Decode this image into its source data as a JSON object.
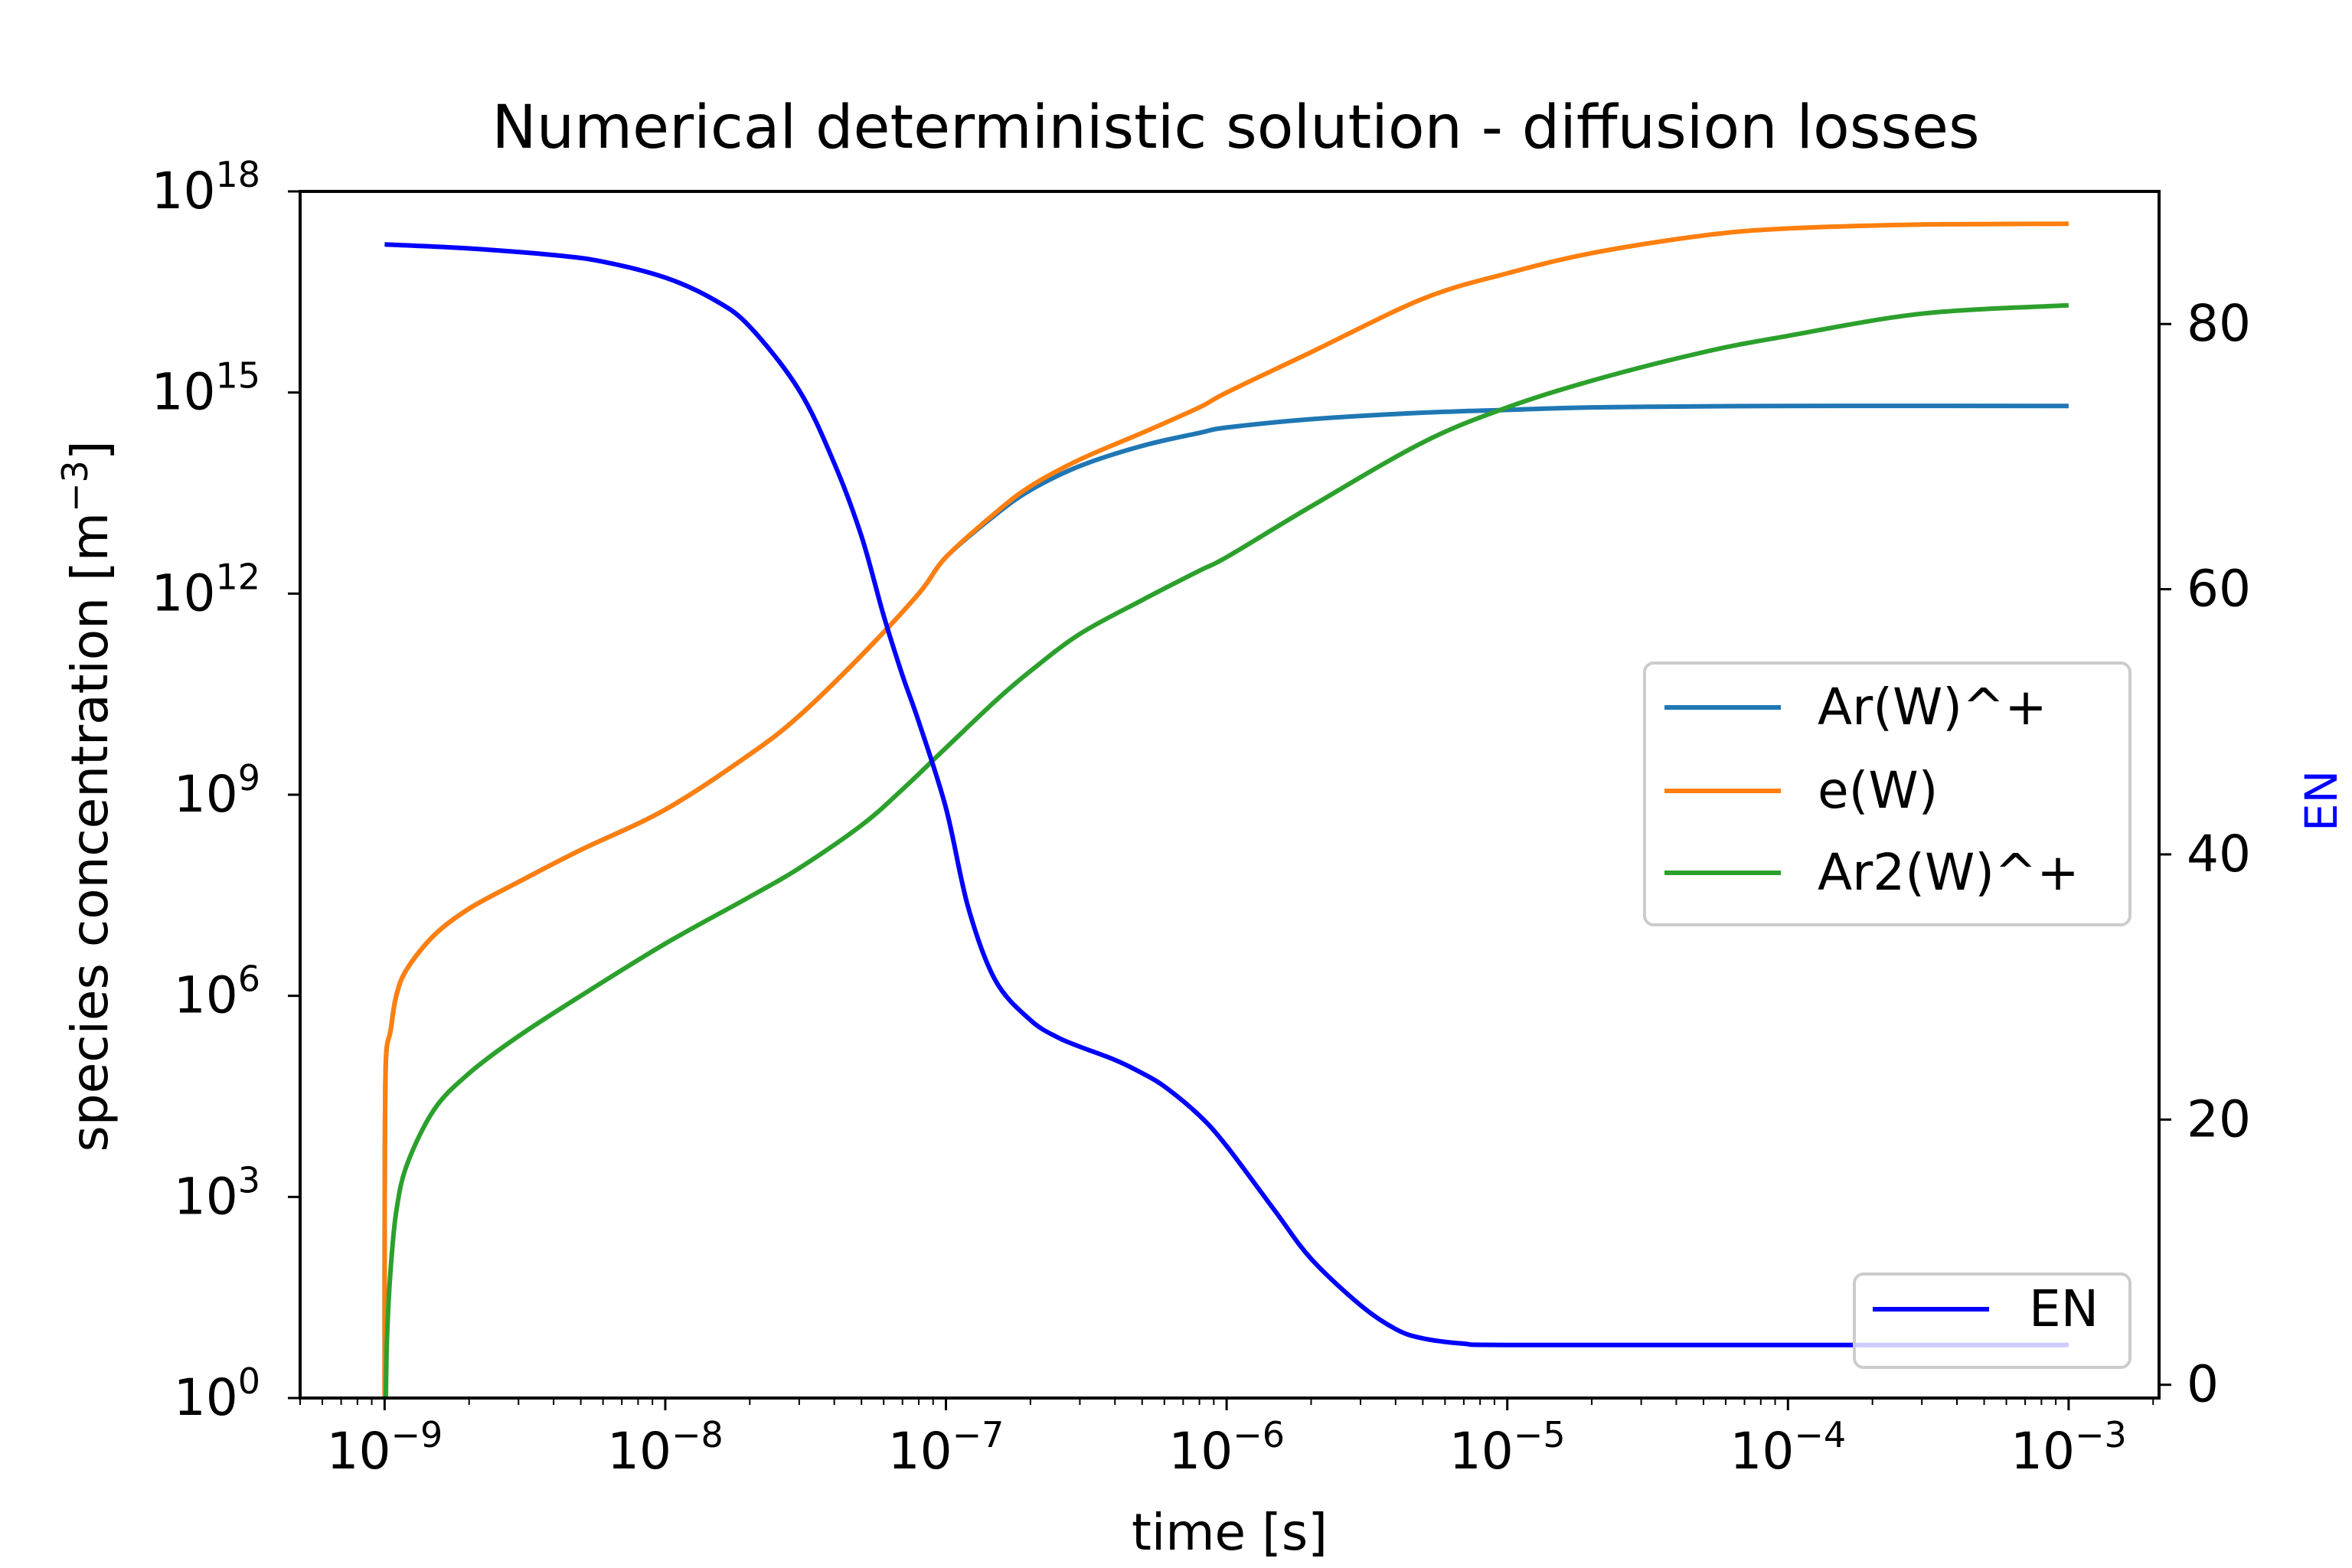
{
  "chart_data": {
    "type": "line",
    "title": "Numerical deterministic solution - diffusion losses",
    "xlabel": "time [s]",
    "ylabel": "species concentration [m",
    "ylabel_exp": "−3",
    "ylabel_tail": "]",
    "y2label": "EN",
    "xscale": "log",
    "yscale": "log",
    "xlim": [
      5e-10,
      0.0021
    ],
    "ylim": [
      1,
      1e+18
    ],
    "y2lim": [
      -1,
      90
    ],
    "x_ticks": [
      {
        "base": "10",
        "exp": "−9"
      },
      {
        "base": "10",
        "exp": "−8"
      },
      {
        "base": "10",
        "exp": "−7"
      },
      {
        "base": "10",
        "exp": "−6"
      },
      {
        "base": "10",
        "exp": "−5"
      },
      {
        "base": "10",
        "exp": "−4"
      },
      {
        "base": "10",
        "exp": "−3"
      }
    ],
    "y_ticks": [
      {
        "base": "10",
        "exp": "0"
      },
      {
        "base": "10",
        "exp": "3"
      },
      {
        "base": "10",
        "exp": "6"
      },
      {
        "base": "10",
        "exp": "9"
      },
      {
        "base": "10",
        "exp": "12"
      },
      {
        "base": "10",
        "exp": "15"
      },
      {
        "base": "10",
        "exp": "18"
      }
    ],
    "y2_ticks": [
      "0",
      "20",
      "40",
      "60",
      "80"
    ],
    "legend_main_position": "center-right",
    "legend_en_position": "lower-right",
    "grid": false,
    "series": [
      {
        "name": "Ar(W)^+",
        "axis": "left",
        "color": "#1f77b4",
        "x": [
          1e-09,
          1.001e-09,
          1.01e-09,
          1.05e-09,
          1.1e-09,
          1.2e-09,
          1.5e-09,
          2e-09,
          3e-09,
          5e-09,
          1e-08,
          2e-08,
          3e-08,
          5e-08,
          8e-08,
          1e-07,
          1.5e-07,
          2e-07,
          3e-07,
          5e-07,
          8e-07,
          1e-06,
          2e-06,
          5e-06,
          1e-05,
          2e-05,
          5e-05,
          0.0001,
          0.001
        ],
        "values": [
          1,
          1000.0,
          100000.0,
          300000.0,
          1000000.0,
          2500000.0,
          8000000.0,
          20000000.0,
          50000000.0,
          150000000.0,
          600000000.0,
          4000000000.0,
          15000000000.0,
          120000000000.0,
          1000000000000.0,
          3500000000000.0,
          15000000000000.0,
          35000000000000.0,
          80000000000000.0,
          160000000000000.0,
          250000000000000.0,
          300000000000000.0,
          400000000000000.0,
          500000000000000.0,
          550000000000000.0,
          600000000000000.0,
          620000000000000.0,
          630000000000000.0,
          630000000000000.0
        ]
      },
      {
        "name": "e(W)",
        "axis": "left",
        "color": "#ff7f0e",
        "x": [
          1e-09,
          1.001e-09,
          1.01e-09,
          1.05e-09,
          1.1e-09,
          1.2e-09,
          1.5e-09,
          2e-09,
          3e-09,
          5e-09,
          1e-08,
          2e-08,
          3e-08,
          5e-08,
          8e-08,
          1e-07,
          1.5e-07,
          2e-07,
          3e-07,
          5e-07,
          8e-07,
          1e-06,
          2e-06,
          5e-06,
          1e-05,
          2e-05,
          5e-05,
          0.0001,
          0.0003,
          0.001
        ],
        "values": [
          1,
          1000.0,
          100000.0,
          300000.0,
          1000000.0,
          2500000.0,
          8000000.0,
          20000000.0,
          50000000.0,
          150000000.0,
          600000000.0,
          4000000000.0,
          15000000000.0,
          120000000000.0,
          1000000000000.0,
          3500000000000.0,
          16000000000000.0,
          40000000000000.0,
          100000000000000.0,
          250000000000000.0,
          600000000000000.0,
          1000000000000000.0,
          4000000000000000.0,
          2.5e+16,
          6e+16,
          1.2e+17,
          2.2e+17,
          2.8e+17,
          3.2e+17,
          3.3e+17
        ]
      },
      {
        "name": "Ar2(W)^+",
        "axis": "left",
        "color": "#2ca02c",
        "x": [
          1.01e-09,
          1.02e-09,
          1.05e-09,
          1.1e-09,
          1.2e-09,
          1.5e-09,
          2e-09,
          3e-09,
          5e-09,
          1e-08,
          2e-08,
          3e-08,
          5e-08,
          7e-08,
          1e-07,
          1.5e-07,
          2e-07,
          3e-07,
          5e-07,
          8e-07,
          1e-06,
          2e-06,
          5e-06,
          1e-05,
          2e-05,
          5e-05,
          0.0001,
          0.0003,
          0.001
        ],
        "values": [
          1,
          8,
          80,
          600,
          3000,
          20000.0,
          70000.0,
          250000.0,
          1000000.0,
          6000000.0,
          30000000.0,
          80000000.0,
          350000000.0,
          1200000000.0,
          5000000000.0,
          25000000000.0,
          70000000000.0,
          250000000000.0,
          800000000000.0,
          2200000000000.0,
          3500000000000.0,
          20000000000000.0,
          180000000000000.0,
          600000000000000.0,
          1500000000000000.0,
          4000000000000000.0,
          7000000000000000.0,
          1.5e+16,
          2e+16
        ]
      },
      {
        "name": "EN",
        "axis": "right",
        "color": "#0000ff",
        "x": [
          1e-09,
          2e-09,
          4e-09,
          6e-09,
          1e-08,
          1.5e-08,
          2e-08,
          3e-08,
          4e-08,
          5e-08,
          6e-08,
          7e-08,
          8e-08,
          1e-07,
          1.2e-07,
          1.5e-07,
          2e-07,
          2.5e-07,
          3e-07,
          4e-07,
          5e-07,
          6e-07,
          8e-07,
          1e-06,
          1.5e-06,
          2e-06,
          3e-06,
          4e-06,
          5e-06,
          7e-06,
          1e-05,
          0.0001,
          0.001
        ],
        "values": [
          86,
          85.7,
          85.2,
          84.7,
          83.5,
          81.8,
          79.8,
          75,
          69.5,
          64,
          58,
          53.5,
          50,
          43.5,
          36,
          30.5,
          27.5,
          26.2,
          25.5,
          24.5,
          23.5,
          22.5,
          20.3,
          18,
          13,
          9.5,
          6,
          4.2,
          3.5,
          3.1,
          3.0,
          3.0,
          3.0
        ]
      }
    ]
  }
}
